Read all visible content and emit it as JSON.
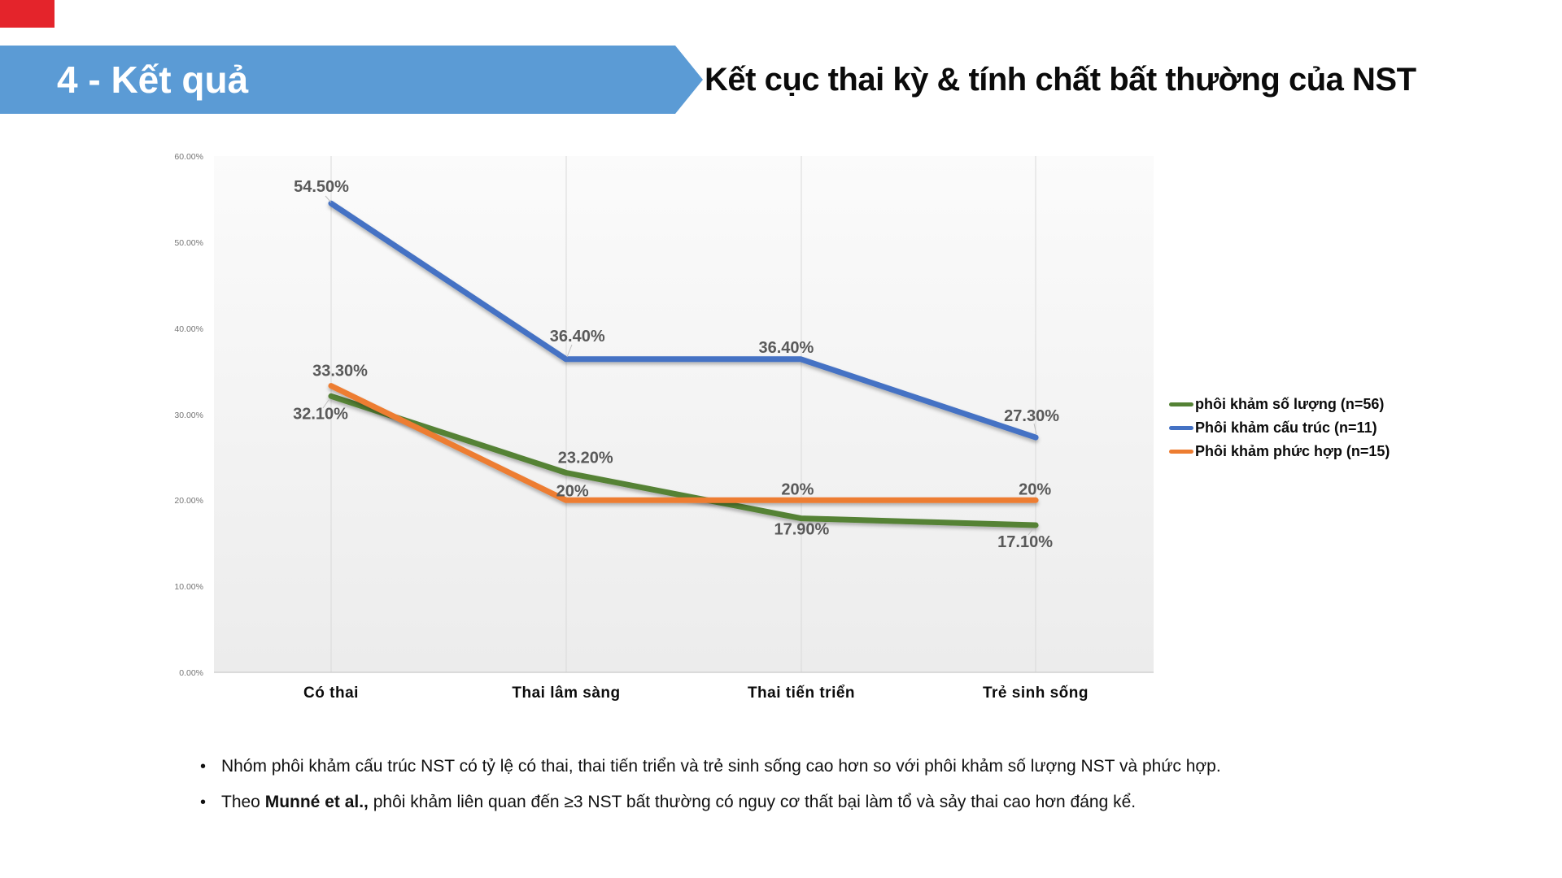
{
  "slide": {
    "banner_label": "4 - Kết quả",
    "title": "Kết cục thai kỳ & tính chất bất thường của NST",
    "accent_blue": "#5b9bd5",
    "accent_red": "#e4242b"
  },
  "chart_data": {
    "type": "line",
    "categories": [
      "Có thai",
      "Thai lâm sàng",
      "Thai tiến triển",
      "Trẻ sinh sống"
    ],
    "series": [
      {
        "name": "phôi khảm số lượng (n=56)",
        "color": "#548235",
        "values": [
          32.1,
          23.2,
          17.9,
          17.1
        ],
        "labels": [
          "32.10%",
          "23.20%",
          "17.90%",
          "17.10%"
        ]
      },
      {
        "name": "Phôi khảm cấu trúc (n=11)",
        "color": "#4472c4",
        "values": [
          54.5,
          36.4,
          36.4,
          27.3
        ],
        "labels": [
          "54.50%",
          "36.40%",
          "36.40%",
          "27.30%"
        ]
      },
      {
        "name": "Phôi khảm phức hợp (n=15)",
        "color": "#ed7d31",
        "values": [
          33.3,
          20,
          20,
          20
        ],
        "labels": [
          "33.30%",
          "20%",
          "20%",
          "20%"
        ]
      }
    ],
    "ylim": [
      0,
      60
    ],
    "yticks": [
      "60.00%",
      "50.00%",
      "40.00%",
      "30.00%",
      "20.00%",
      "10.00%",
      "0.00%"
    ],
    "ylabel": "",
    "xlabel": "",
    "title": "",
    "grid": "vertical-category-lines",
    "legend_position": "right",
    "data_label_color": "#595959",
    "gridline_color": "#d9d9d9"
  },
  "notes": {
    "bullet_char": "•",
    "items": [
      {
        "prefix": "Nhóm phôi khảm cấu trúc NST có tỷ lệ có thai, thai tiến triển và trẻ sinh sống cao hơn so với phôi khảm số lượng NST và phức hợp.",
        "bold": "",
        "suffix": ""
      },
      {
        "prefix": "Theo ",
        "bold": "Munné et al.,",
        "suffix": " phôi khảm liên quan đến ≥3 NST bất thường có nguy cơ thất bại làm tổ và sảy thai cao hơn đáng kể."
      }
    ]
  }
}
